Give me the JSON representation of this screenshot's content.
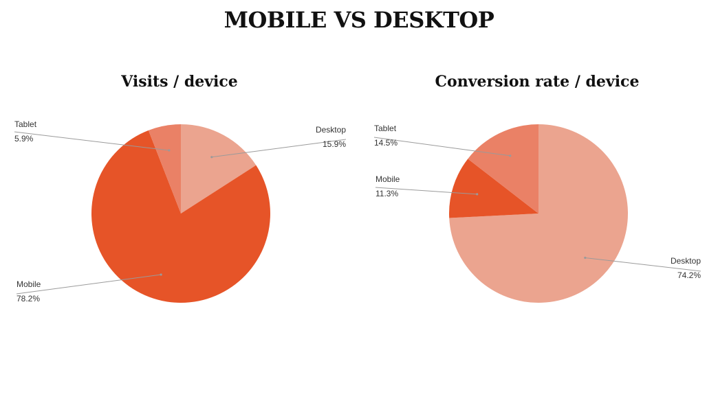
{
  "page": {
    "title": "MOBILE VS DESKTOP"
  },
  "colors": {
    "Desktop": "#eba48f",
    "Mobile": "#e65428",
    "Tablet": "#ea8166"
  },
  "chart_data": [
    {
      "type": "pie",
      "title": "Visits / device",
      "slices": [
        {
          "label": "Desktop",
          "value": 15.9,
          "display": "15.9%"
        },
        {
          "label": "Mobile",
          "value": 78.2,
          "display": "78.2%"
        },
        {
          "label": "Tablet",
          "value": 5.9,
          "display": "5.9%"
        }
      ]
    },
    {
      "type": "pie",
      "title": "Conversion rate / device",
      "slices": [
        {
          "label": "Desktop",
          "value": 74.2,
          "display": "74.2%"
        },
        {
          "label": "Mobile",
          "value": 11.3,
          "display": "11.3%"
        },
        {
          "label": "Tablet",
          "value": 14.5,
          "display": "14.5%"
        }
      ]
    }
  ]
}
